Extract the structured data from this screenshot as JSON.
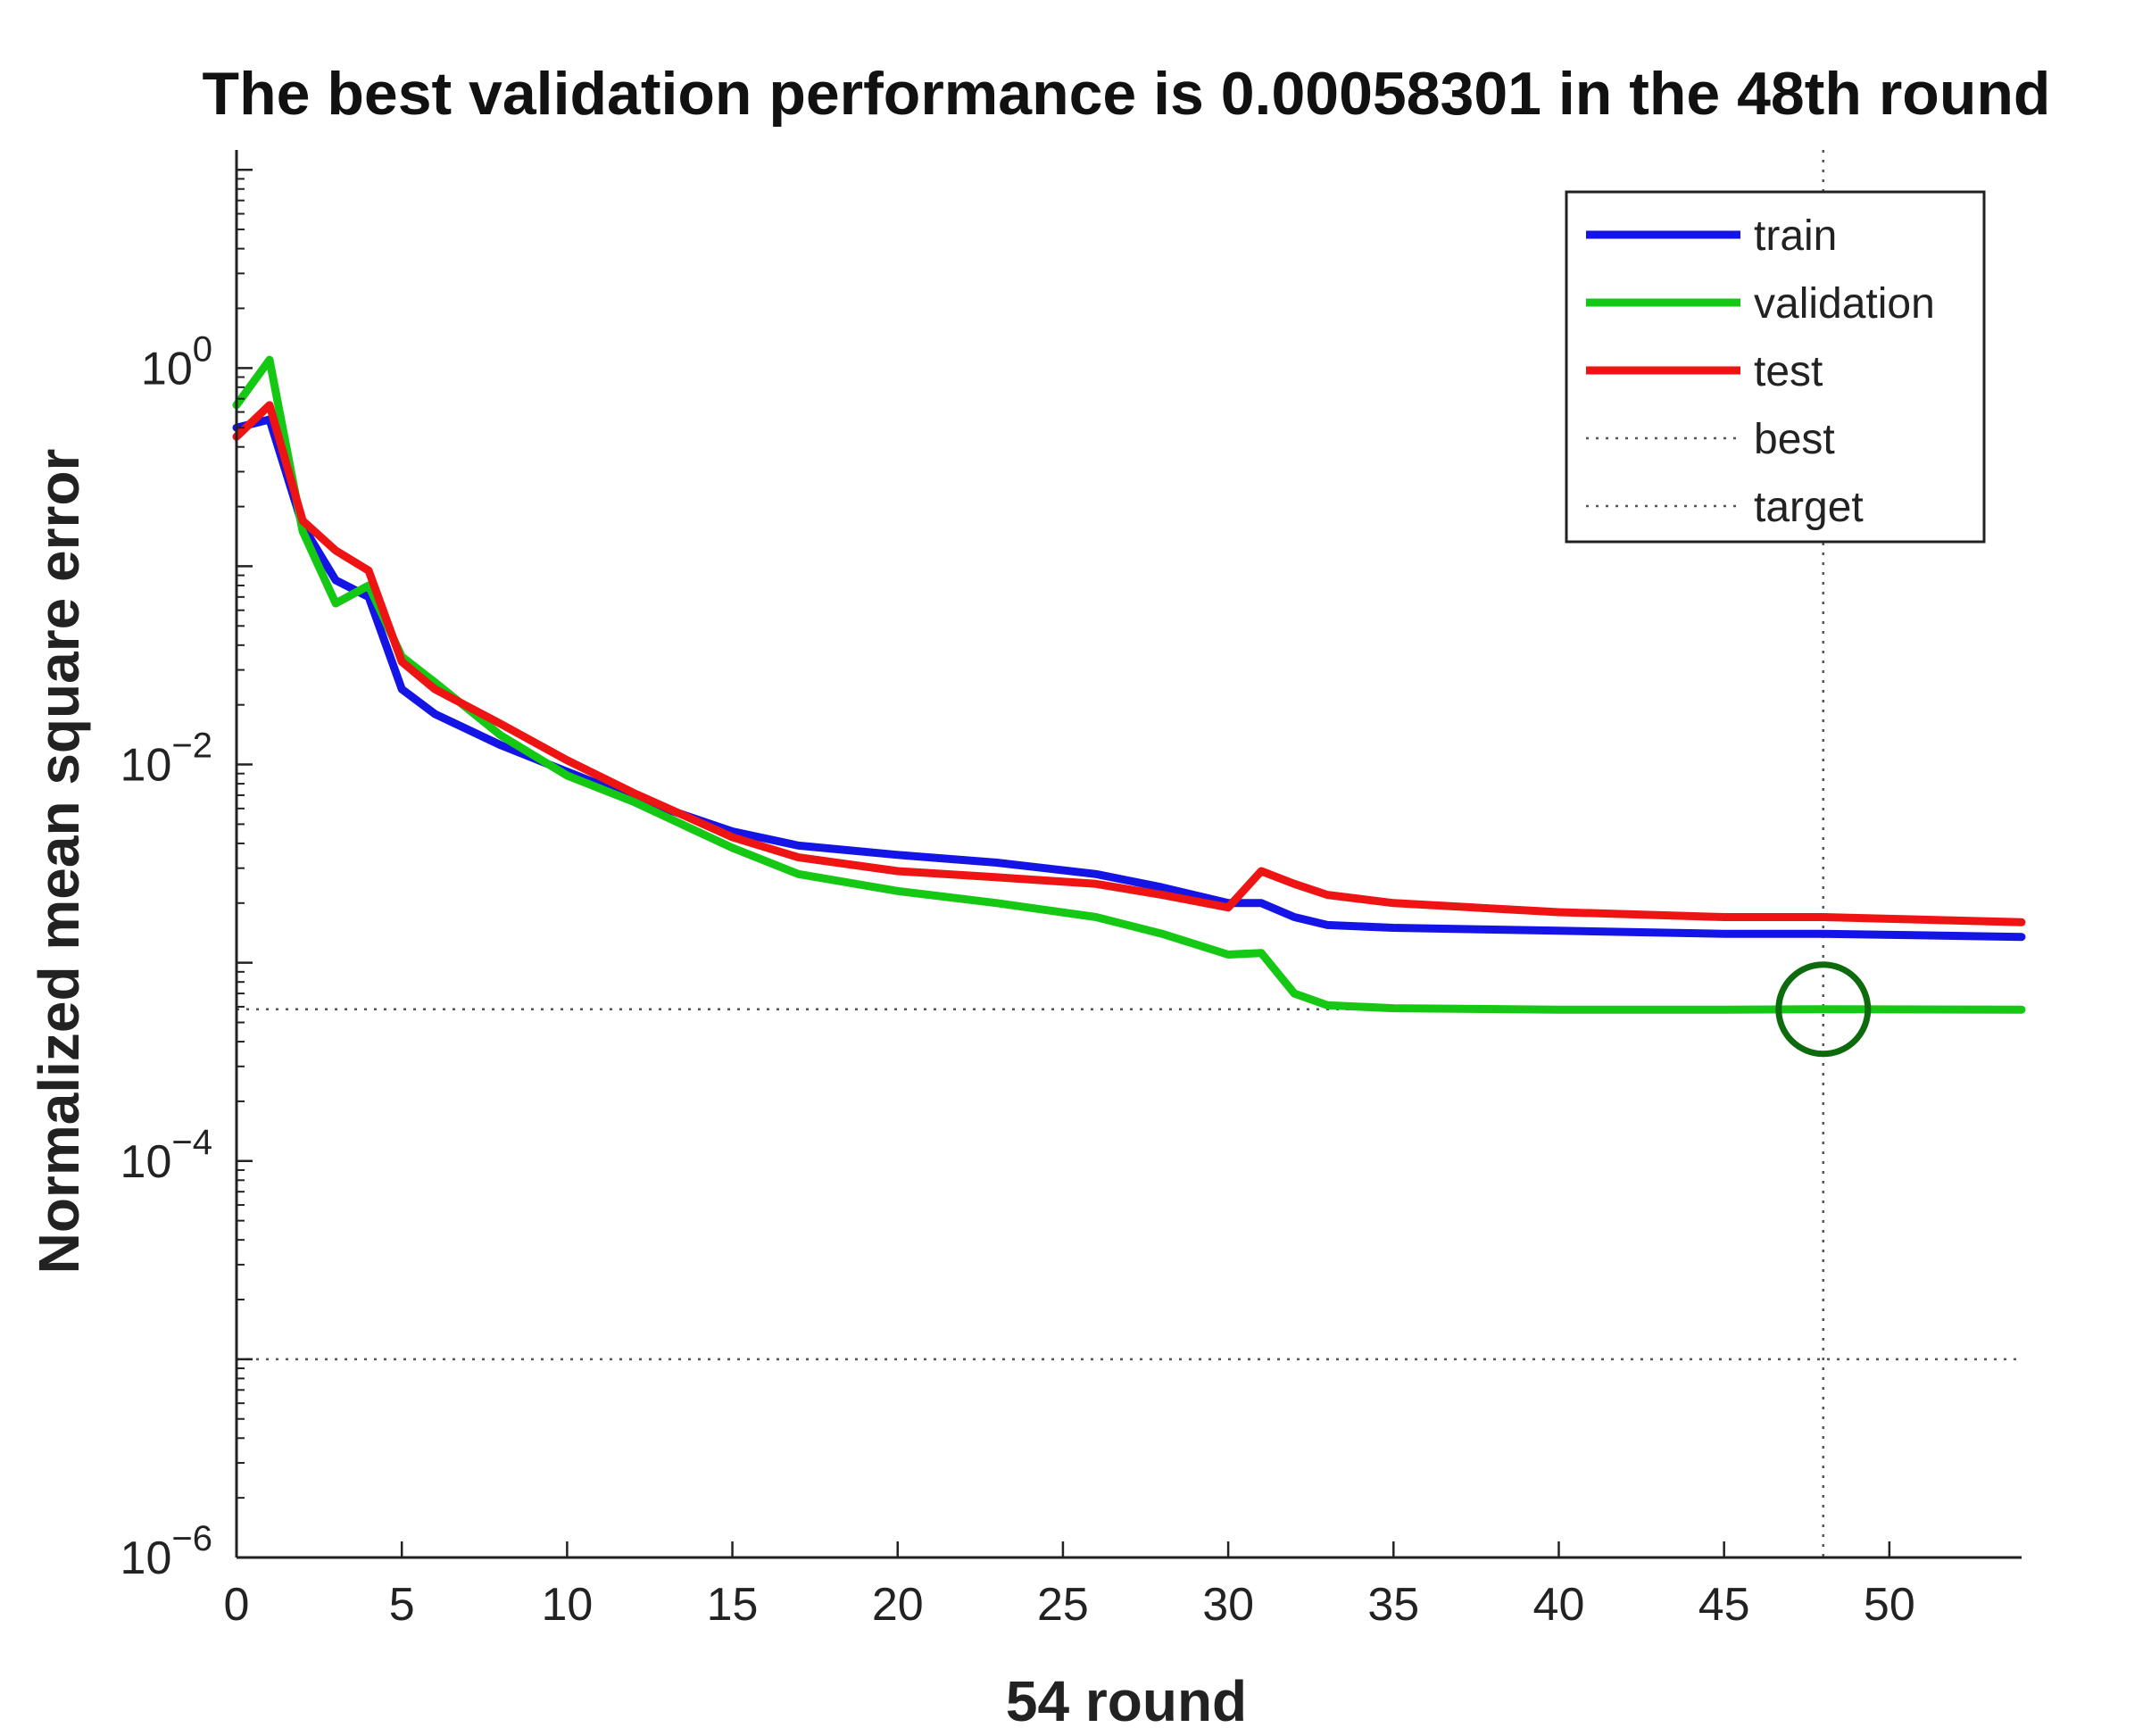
{
  "chart_data": {
    "type": "line",
    "title": "The best validation performance is 0.00058301 in the 48th round",
    "xlabel": "54 round",
    "ylabel": "Normalized mean square error",
    "xlim": [
      0,
      54
    ],
    "ylim_exp": [
      -6,
      1.1
    ],
    "yscale": "log",
    "x_ticks": [
      0,
      5,
      10,
      15,
      20,
      25,
      30,
      35,
      40,
      45,
      50
    ],
    "y_ticks": [
      {
        "base": "10",
        "exp": "0",
        "value_exp": 0
      },
      {
        "base": "10",
        "exp": "−2",
        "value_exp": -2
      },
      {
        "base": "10",
        "exp": "−4",
        "value_exp": -4
      },
      {
        "base": "10",
        "exp": "−6",
        "value_exp": -6
      }
    ],
    "series": [
      {
        "name": "train",
        "color": "#1414e6",
        "x": [
          0,
          1,
          2,
          3,
          4,
          5,
          6,
          8,
          10,
          12,
          15,
          17,
          20,
          23,
          26,
          28,
          30,
          31,
          32,
          33,
          35,
          40,
          45,
          48,
          54
        ],
        "y": [
          0.5,
          0.55,
          0.16,
          0.085,
          0.07,
          0.024,
          0.018,
          0.0125,
          0.0092,
          0.0068,
          0.0046,
          0.0039,
          0.0035,
          0.0032,
          0.0028,
          0.0024,
          0.002,
          0.002,
          0.0017,
          0.00155,
          0.0015,
          0.00145,
          0.0014,
          0.0014,
          0.00135
        ]
      },
      {
        "name": "validation",
        "color": "#14c814",
        "x": [
          0,
          1,
          2,
          3,
          4,
          5,
          6,
          8,
          10,
          12,
          15,
          17,
          20,
          23,
          26,
          28,
          30,
          31,
          32,
          33,
          35,
          40,
          45,
          48,
          54
        ],
        "y": [
          0.65,
          1.1,
          0.15,
          0.065,
          0.08,
          0.035,
          0.026,
          0.014,
          0.0088,
          0.0065,
          0.0038,
          0.0028,
          0.0023,
          0.002,
          0.0017,
          0.0014,
          0.0011,
          0.00112,
          0.0007,
          0.00061,
          0.00059,
          0.00058,
          0.00058,
          0.00058301,
          0.00058
        ]
      },
      {
        "name": "test",
        "color": "#ee1414",
        "x": [
          0,
          1,
          2,
          3,
          4,
          5,
          6,
          8,
          10,
          12,
          15,
          17,
          20,
          23,
          26,
          28,
          30,
          31,
          32,
          33,
          35,
          40,
          45,
          48,
          54
        ],
        "y": [
          0.45,
          0.65,
          0.17,
          0.12,
          0.095,
          0.033,
          0.024,
          0.016,
          0.0105,
          0.0072,
          0.0043,
          0.0034,
          0.0029,
          0.0027,
          0.0025,
          0.0022,
          0.0019,
          0.0029,
          0.0025,
          0.0022,
          0.002,
          0.0018,
          0.0017,
          0.0017,
          0.0016
        ]
      }
    ],
    "best": {
      "name": "best",
      "epoch": 48,
      "value": 0.00058301
    },
    "target": {
      "name": "target",
      "value": 1e-05
    },
    "legend": {
      "position": "top-right",
      "entries": [
        "train",
        "validation",
        "test",
        "best",
        "target"
      ]
    }
  }
}
